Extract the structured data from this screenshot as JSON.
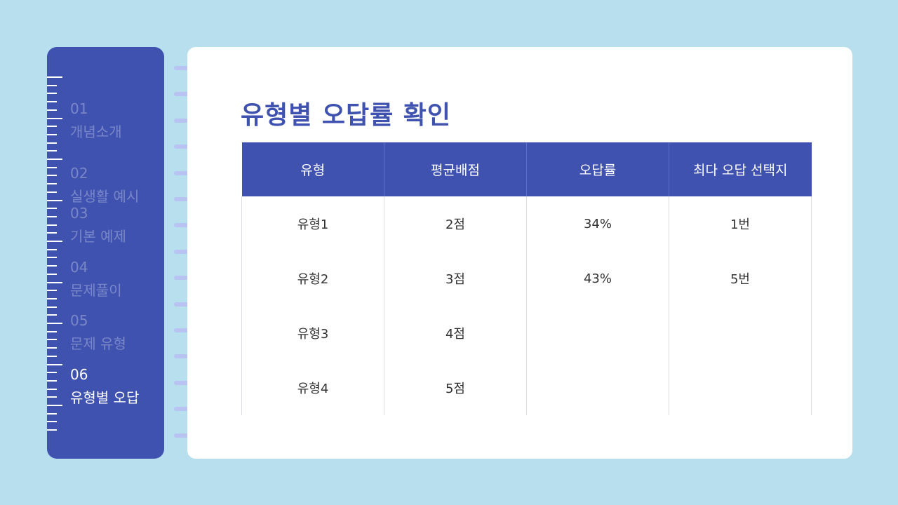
{
  "colors": {
    "background": "#b8dfee",
    "accent": "#3f52b0",
    "ring": "#8c9ae8",
    "card": "#ffffff"
  },
  "sidebar": {
    "items": [
      {
        "num": "01",
        "label": "개념소개"
      },
      {
        "num": "02",
        "label": "실생활 예시"
      },
      {
        "num": "03",
        "label": "기본 예제"
      },
      {
        "num": "04",
        "label": "문제풀이"
      },
      {
        "num": "05",
        "label": "문제 유형"
      },
      {
        "num": "06",
        "label": "유형별 오답"
      }
    ],
    "active_index": 5
  },
  "main": {
    "title": "유형별 오답률 확인",
    "table": {
      "headers": [
        "유형",
        "평균배점",
        "오답률",
        "최다 오답 선택지"
      ],
      "rows": [
        [
          "유형1",
          "2점",
          "34%",
          "1번"
        ],
        [
          "유형2",
          "3점",
          "43%",
          "5번"
        ],
        [
          "유형3",
          "4점",
          "",
          ""
        ],
        [
          "유형4",
          "5점",
          "",
          ""
        ]
      ]
    }
  }
}
